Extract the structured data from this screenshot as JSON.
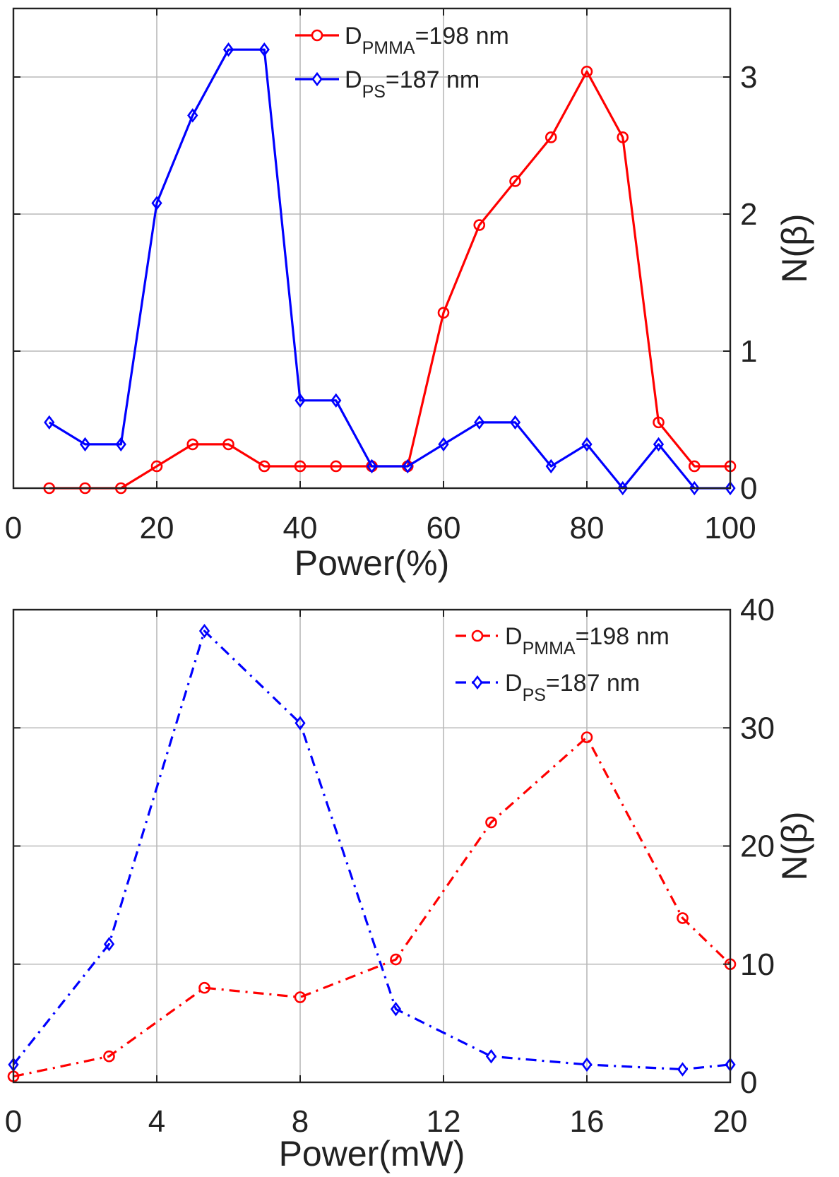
{
  "chart_data": [
    {
      "type": "line",
      "title": "",
      "xlabel": "Power(%)",
      "ylabel": "N(β)",
      "xlim": [
        0,
        100
      ],
      "ylim": [
        0,
        3.5
      ],
      "xticks": [
        0,
        20,
        40,
        60,
        80,
        100
      ],
      "yticks": [
        0,
        1,
        2,
        3
      ],
      "xtick_labels": [
        "0",
        "20",
        "40",
        "60",
        "80",
        "100"
      ],
      "ytick_labels": [
        "0",
        "1",
        "2",
        "3"
      ],
      "y_axis_side": "right",
      "grid": true,
      "legend_position": "top-center",
      "series": [
        {
          "key": "pmma",
          "label_main": "D",
          "label_sub": "PMMA",
          "label_tail": "=198 nm",
          "color": "#ff0000",
          "line_style": "solid",
          "marker": "circle",
          "x": [
            5,
            10,
            15,
            20,
            25,
            30,
            35,
            40,
            45,
            50,
            55,
            60,
            65,
            70,
            75,
            80,
            85,
            90,
            95,
            100
          ],
          "values": [
            0,
            0,
            0,
            0.16,
            0.32,
            0.32,
            0.16,
            0.16,
            0.16,
            0.16,
            0.16,
            1.28,
            1.92,
            2.24,
            2.56,
            3.04,
            2.56,
            0.48,
            0.16,
            0.16
          ]
        },
        {
          "key": "ps",
          "label_main": "D",
          "label_sub": "PS",
          "label_tail": "=187 nm",
          "color": "#0000ff",
          "line_style": "solid",
          "marker": "diamond",
          "x": [
            5,
            10,
            15,
            20,
            25,
            30,
            35,
            40,
            45,
            50,
            55,
            60,
            65,
            70,
            75,
            80,
            85,
            90,
            95,
            100
          ],
          "values": [
            0.48,
            0.32,
            0.32,
            2.08,
            2.72,
            3.2,
            3.2,
            0.64,
            0.64,
            0.16,
            0.16,
            0.32,
            0.48,
            0.48,
            0.16,
            0.32,
            0,
            0.32,
            0,
            0
          ]
        }
      ]
    },
    {
      "type": "line",
      "title": "",
      "xlabel": "Power(mW)",
      "ylabel": "N(β)",
      "xlim": [
        0,
        20
      ],
      "ylim": [
        0,
        40
      ],
      "xticks": [
        0,
        4,
        8,
        12,
        16,
        20
      ],
      "yticks": [
        0,
        10,
        20,
        30,
        40
      ],
      "xtick_labels": [
        "0",
        "4",
        "8",
        "12",
        "16",
        "20"
      ],
      "ytick_labels": [
        "0",
        "10",
        "20",
        "30",
        "40"
      ],
      "y_axis_side": "right",
      "grid": true,
      "legend_position": "top-right",
      "series": [
        {
          "key": "pmma",
          "label_main": "D",
          "label_sub": "PMMA",
          "label_tail": "=198 nm",
          "color": "#ff0000",
          "line_style": "dash-dot",
          "marker": "circle",
          "x": [
            0,
            2.67,
            5.33,
            8,
            10.67,
            13.33,
            16,
            18.67,
            20
          ],
          "values": [
            0.5,
            2.2,
            8.0,
            7.2,
            10.4,
            22.0,
            29.2,
            13.9,
            10.0
          ]
        },
        {
          "key": "ps",
          "label_main": "D",
          "label_sub": "PS",
          "label_tail": "=187 nm",
          "color": "#0000ff",
          "line_style": "dash-dot",
          "marker": "diamond",
          "x": [
            0,
            2.67,
            5.33,
            8,
            10.67,
            13.33,
            16,
            18.67,
            20
          ],
          "values": [
            1.5,
            11.7,
            38.2,
            30.4,
            6.2,
            2.2,
            1.5,
            1.1,
            1.5
          ]
        }
      ]
    }
  ]
}
